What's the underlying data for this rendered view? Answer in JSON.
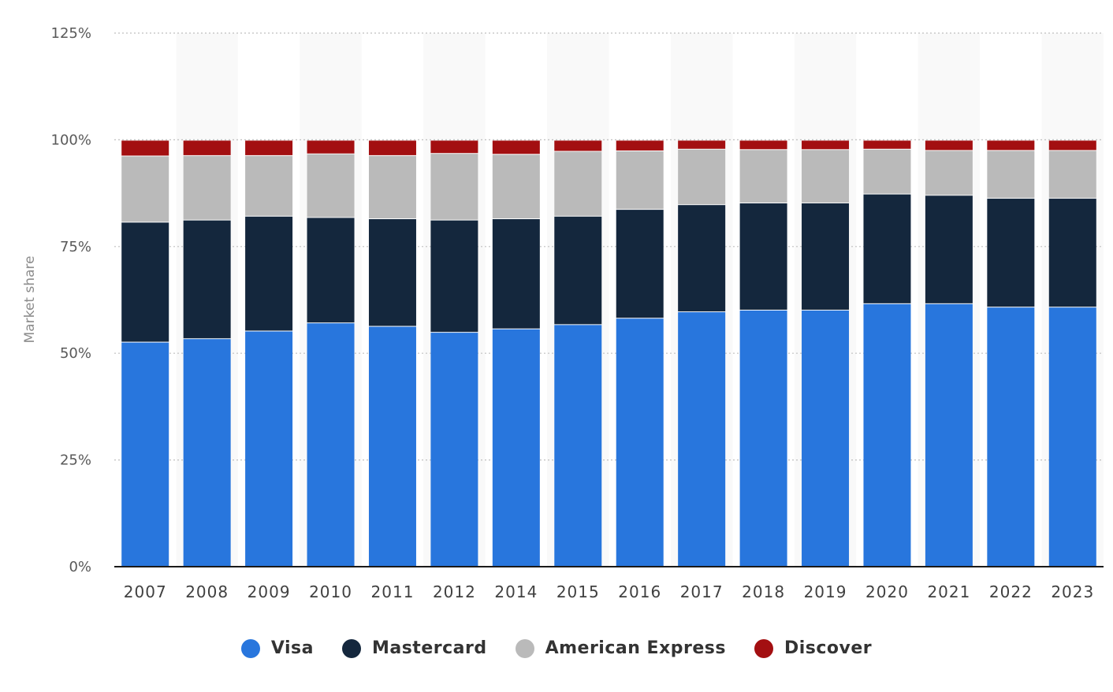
{
  "chart_data": {
    "type": "bar",
    "stacked": true,
    "ylabel": "Market share",
    "xlabel": "",
    "ylim": [
      0,
      125
    ],
    "yticks": [
      "0%",
      "25%",
      "50%",
      "75%",
      "100%",
      "125%"
    ],
    "grid": true,
    "legend_position": "bottom",
    "categories": [
      "2007",
      "2008",
      "2009",
      "2010",
      "2011",
      "2012",
      "2014",
      "2015",
      "2016",
      "2017",
      "2018",
      "2019",
      "2020",
      "2021",
      "2022",
      "2023"
    ],
    "series": [
      {
        "name": "Visa",
        "color": "#2876dd",
        "values": [
          52.7,
          53.5,
          55.3,
          57.2,
          56.4,
          55.0,
          55.8,
          56.8,
          58.3,
          59.8,
          60.2,
          60.2,
          61.7,
          61.7,
          60.9,
          60.9
        ]
      },
      {
        "name": "Mastercard",
        "color": "#14273d",
        "values": [
          28.1,
          27.8,
          26.9,
          24.7,
          25.2,
          26.3,
          25.8,
          25.4,
          25.5,
          25.1,
          25.1,
          25.1,
          25.7,
          25.4,
          25.5,
          25.5
        ]
      },
      {
        "name": "American Express",
        "color": "#bababa",
        "values": [
          15.5,
          15.1,
          14.2,
          14.9,
          14.8,
          15.6,
          15.1,
          15.2,
          13.7,
          13.0,
          12.5,
          12.5,
          10.5,
          10.5,
          11.2,
          11.2
        ]
      },
      {
        "name": "Discover",
        "color": "#a30f11",
        "values": [
          3.7,
          3.6,
          3.6,
          3.2,
          3.6,
          3.1,
          3.3,
          2.6,
          2.5,
          2.1,
          2.2,
          2.2,
          2.1,
          2.4,
          2.4,
          2.4
        ]
      }
    ]
  }
}
